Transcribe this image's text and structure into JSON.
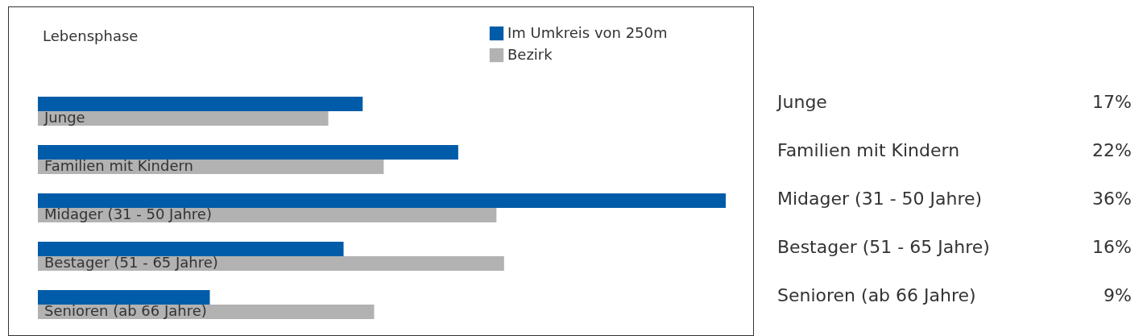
{
  "chart_data": {
    "type": "bar",
    "orientation": "horizontal",
    "title": "Lebensphase",
    "categories": [
      "Junge",
      "Familien mit Kindern",
      "Midager (31 - 50 Jahre)",
      "Bestager (51 - 65 Jahre)",
      "Senioren (ab 66 Jahre)"
    ],
    "series": [
      {
        "name": "Im Umkreis von 250m",
        "color": "#005ca8",
        "values": [
          17,
          22,
          36,
          16,
          9
        ],
        "value_labels": [
          "17%",
          "22%",
          "36%",
          "16%",
          "9%"
        ]
      },
      {
        "name": "Bezirk",
        "color": "#b2b2b2",
        "values": [
          15.2,
          18.1,
          24,
          24.4,
          17.6
        ]
      }
    ],
    "legend": "top right"
  }
}
